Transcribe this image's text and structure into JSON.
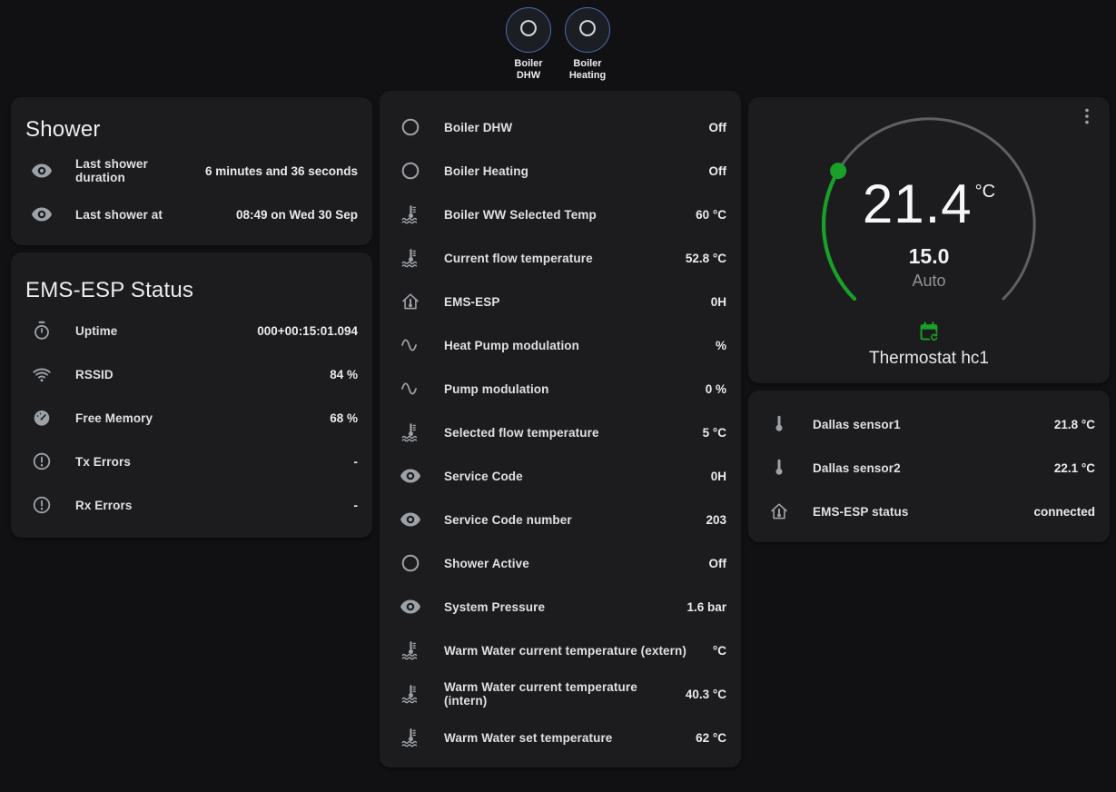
{
  "theme": {
    "page_bg": "#111113",
    "card_bg": "#1c1c1e",
    "text_primary": "#e2e3e5",
    "text_secondary": "#8f9296",
    "icon_color": "#9da2a8",
    "accent_green": "#18a028",
    "ring_blue": "#4d6db0",
    "arc_gray": "#5d6165"
  },
  "top_buttons": [
    {
      "icon": "radio-circle-icon",
      "lines": [
        "Boiler",
        "DHW"
      ]
    },
    {
      "icon": "radio-circle-icon",
      "lines": [
        "Boiler",
        "Heating"
      ]
    }
  ],
  "shower_card": {
    "title": "Shower",
    "rows": [
      {
        "icon": "eye-icon",
        "label": "Last shower duration",
        "value": "6 minutes and 36 seconds"
      },
      {
        "icon": "eye-icon",
        "label": "Last shower at",
        "value": "08:49 on Wed 30 Sep"
      }
    ]
  },
  "ems_status_card": {
    "title": "EMS-ESP Status",
    "rows": [
      {
        "icon": "timer-icon",
        "label": "Uptime",
        "value": "000+00:15:01.094"
      },
      {
        "icon": "wifi-icon",
        "label": "RSSID",
        "value": "84 %"
      },
      {
        "icon": "gauge-icon",
        "label": "Free Memory",
        "value": "68 %"
      },
      {
        "icon": "alert-circle-icon",
        "label": "Tx Errors",
        "value": "-"
      },
      {
        "icon": "alert-circle-icon",
        "label": "Rx Errors",
        "value": "-"
      }
    ]
  },
  "boiler_card": {
    "rows": [
      {
        "icon": "circle-icon",
        "label": "Boiler DHW",
        "value": "Off"
      },
      {
        "icon": "circle-icon",
        "label": "Boiler Heating",
        "value": "Off"
      },
      {
        "icon": "thermometer-water-icon",
        "label": "Boiler WW Selected Temp",
        "value": "60 °C"
      },
      {
        "icon": "thermometer-water-icon",
        "label": "Current flow temperature",
        "value": "52.8 °C"
      },
      {
        "icon": "home-thermometer-icon",
        "label": "EMS-ESP",
        "value": "0H"
      },
      {
        "icon": "sine-wave-icon",
        "label": "Heat Pump modulation",
        "value": "%"
      },
      {
        "icon": "sine-wave-icon",
        "label": "Pump modulation",
        "value": "0 %"
      },
      {
        "icon": "thermometer-water-icon",
        "label": "Selected flow temperature",
        "value": "5 °C"
      },
      {
        "icon": "eye-icon",
        "label": "Service Code",
        "value": "0H"
      },
      {
        "icon": "eye-icon",
        "label": "Service Code number",
        "value": "203"
      },
      {
        "icon": "circle-icon",
        "label": "Shower Active",
        "value": "Off"
      },
      {
        "icon": "eye-icon",
        "label": "System Pressure",
        "value": "1.6 bar"
      },
      {
        "icon": "thermometer-water-icon",
        "label": "Warm Water current temperature (extern)",
        "value": "°C"
      },
      {
        "icon": "thermometer-water-icon",
        "label": "Warm Water current temperature (intern)",
        "value": "40.3 °C"
      },
      {
        "icon": "thermometer-water-icon",
        "label": "Warm Water set temperature",
        "value": "62 °C"
      }
    ]
  },
  "thermostat_card": {
    "current_temp": "21.4",
    "unit": "°C",
    "target": "15.0",
    "mode": "Auto",
    "name": "Thermostat hc1",
    "schedule_icon": "calendar-sync-icon",
    "menu_icon": "kebab-menu-icon"
  },
  "sensor_card": {
    "rows": [
      {
        "icon": "thermometer-icon",
        "label": "Dallas sensor1",
        "value": "21.8 °C"
      },
      {
        "icon": "thermometer-icon",
        "label": "Dallas sensor2",
        "value": "22.1 °C"
      },
      {
        "icon": "home-thermometer-icon",
        "label": "EMS-ESP status",
        "value": "connected"
      }
    ]
  }
}
